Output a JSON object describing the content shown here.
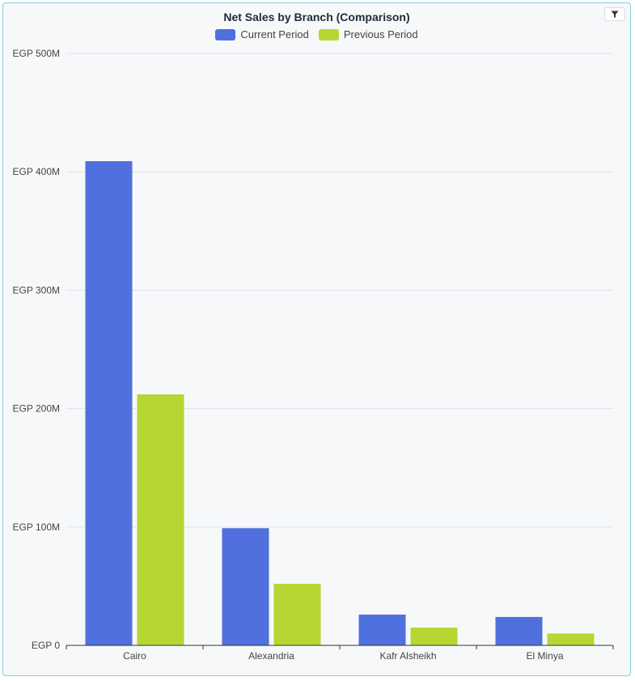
{
  "chart_data": {
    "type": "bar",
    "title": "Net Sales by Branch (Comparison)",
    "categories": [
      "Cairo",
      "Alexandria",
      "Kafr Alsheikh",
      "El Minya"
    ],
    "series": [
      {
        "name": "Current Period",
        "color": "#5070dd",
        "values": [
          409,
          99,
          26,
          24
        ]
      },
      {
        "name": "Previous Period",
        "color": "#b6d634",
        "values": [
          212,
          52,
          15,
          10
        ]
      }
    ],
    "unit": "M",
    "ylim": [
      0,
      500
    ],
    "yticks": [
      {
        "value": 0,
        "label": "EGP 0"
      },
      {
        "value": 100,
        "label": "EGP 100M"
      },
      {
        "value": 200,
        "label": "EGP 200M"
      },
      {
        "value": 300,
        "label": "EGP 300M"
      },
      {
        "value": 400,
        "label": "EGP 400M"
      },
      {
        "value": 500,
        "label": "EGP 500M"
      }
    ],
    "grid": true,
    "legend_position": "top-center"
  },
  "toolbar": {
    "filter_icon": "filter-icon"
  }
}
